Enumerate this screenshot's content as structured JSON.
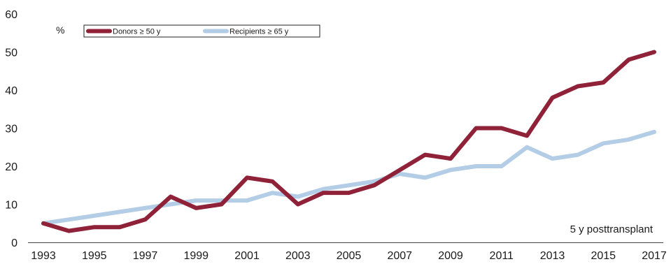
{
  "chart_data": {
    "type": "line",
    "title": "",
    "xlabel": "",
    "ylabel": "",
    "unit_label": "%",
    "annotation": "5 y posttransplant",
    "x": [
      1993,
      1994,
      1995,
      1996,
      1997,
      1998,
      1999,
      2000,
      2001,
      2002,
      2003,
      2004,
      2005,
      2006,
      2007,
      2008,
      2009,
      2010,
      2011,
      2012,
      2013,
      2014,
      2015,
      2016,
      2017
    ],
    "x_tick_labels": [
      "1993",
      "1995",
      "1997",
      "1999",
      "2001",
      "2003",
      "2005",
      "2007",
      "2009",
      "2011",
      "2013",
      "2015",
      "2017"
    ],
    "y_tick_labels": [
      "0",
      "10",
      "20",
      "30",
      "40",
      "50",
      "60"
    ],
    "ylim": [
      0,
      60
    ],
    "xlim": [
      1993,
      2017
    ],
    "grid": false,
    "legend_position": "top-left",
    "series": [
      {
        "name": "Donors ≥ 50 y",
        "color": "#8f2238",
        "values": [
          5,
          3,
          4,
          4,
          6,
          12,
          9,
          10,
          17,
          16,
          10,
          13,
          13,
          15,
          19,
          23,
          22,
          30,
          30,
          28,
          38,
          41,
          42,
          48,
          50
        ]
      },
      {
        "name": "Recipients ≥ 65 y",
        "color": "#b4cde6",
        "values": [
          5,
          6,
          7,
          8,
          9,
          10,
          11,
          11,
          11,
          13,
          12,
          14,
          15,
          16,
          18,
          17,
          19,
          20,
          20,
          25,
          22,
          23,
          26,
          27,
          29
        ]
      }
    ]
  }
}
